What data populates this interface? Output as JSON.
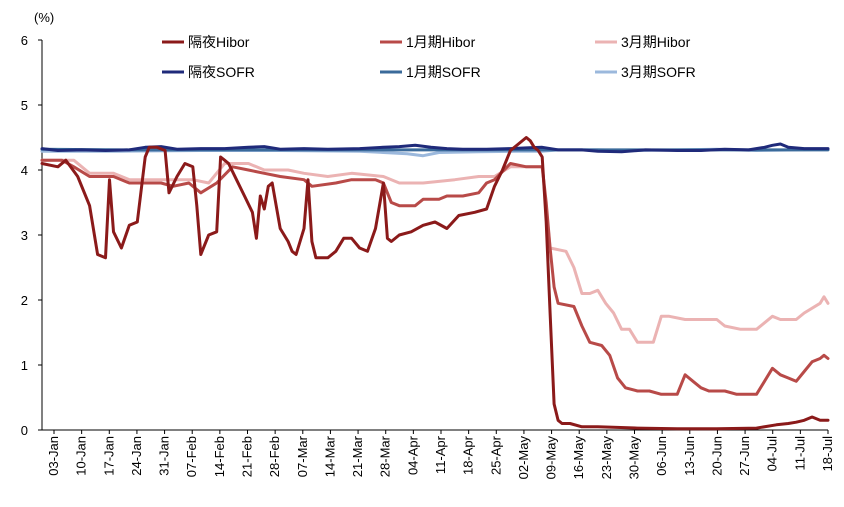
{
  "chart_data": {
    "type": "line",
    "unit_label": "(%)",
    "ylim": [
      0,
      6
    ],
    "yticks": [
      "0",
      "1",
      "2",
      "3",
      "4",
      "5",
      "6"
    ],
    "xlim": [
      0,
      198
    ],
    "xtick_labels": [
      "03-Jan",
      "10-Jan",
      "17-Jan",
      "24-Jan",
      "31-Jan",
      "07-Feb",
      "14-Feb",
      "21-Feb",
      "28-Feb",
      "07-Mar",
      "14-Mar",
      "21-Mar",
      "28-Mar",
      "04-Apr",
      "11-Apr",
      "18-Apr",
      "25-Apr",
      "02-May",
      "09-May",
      "16-May",
      "23-May",
      "30-May",
      "06-Jun",
      "13-Jun",
      "20-Jun",
      "27-Jun",
      "04-Jul",
      "11-Jul",
      "18-Jul"
    ],
    "grid": false,
    "legend_position": "top",
    "colors": {
      "hibor_on": "#8B1A1A",
      "hibor_1m": "#B84A48",
      "hibor_3m": "#EBB3B3",
      "sofr_on": "#1F2A7A",
      "sofr_1m": "#3A6A9A",
      "sofr_3m": "#9BB8DC"
    },
    "series": [
      {
        "name": "隔夜Hibor",
        "key": "hibor_on",
        "points": [
          [
            0,
            4.1
          ],
          [
            4,
            4.05
          ],
          [
            6,
            4.15
          ],
          [
            9,
            3.9
          ],
          [
            12,
            3.45
          ],
          [
            14,
            2.7
          ],
          [
            16,
            2.65
          ],
          [
            17,
            3.85
          ],
          [
            18,
            3.05
          ],
          [
            20,
            2.8
          ],
          [
            22,
            3.15
          ],
          [
            24,
            3.2
          ],
          [
            26,
            4.2
          ],
          [
            27,
            4.35
          ],
          [
            29,
            4.35
          ],
          [
            31,
            4.3
          ],
          [
            32,
            3.65
          ],
          [
            34,
            3.9
          ],
          [
            36,
            4.1
          ],
          [
            38,
            4.05
          ],
          [
            39,
            3.45
          ],
          [
            40,
            2.7
          ],
          [
            42,
            3.0
          ],
          [
            44,
            3.05
          ],
          [
            45,
            4.2
          ],
          [
            46,
            4.15
          ],
          [
            47,
            4.1
          ],
          [
            49,
            3.85
          ],
          [
            51,
            3.6
          ],
          [
            53,
            3.35
          ],
          [
            54,
            2.95
          ],
          [
            55,
            3.6
          ],
          [
            56,
            3.4
          ],
          [
            57,
            3.75
          ],
          [
            58,
            3.8
          ],
          [
            60,
            3.1
          ],
          [
            62,
            2.9
          ],
          [
            63,
            2.75
          ],
          [
            64,
            2.7
          ],
          [
            66,
            3.1
          ],
          [
            67,
            3.85
          ],
          [
            68,
            2.9
          ],
          [
            69,
            2.65
          ],
          [
            72,
            2.65
          ],
          [
            74,
            2.75
          ],
          [
            76,
            2.95
          ],
          [
            78,
            2.95
          ],
          [
            80,
            2.8
          ],
          [
            82,
            2.75
          ],
          [
            84,
            3.1
          ],
          [
            86,
            3.8
          ],
          [
            87,
            2.95
          ],
          [
            88,
            2.9
          ],
          [
            90,
            3.0
          ],
          [
            93,
            3.05
          ],
          [
            96,
            3.15
          ],
          [
            99,
            3.2
          ],
          [
            102,
            3.1
          ],
          [
            105,
            3.3
          ],
          [
            109,
            3.35
          ],
          [
            112,
            3.4
          ],
          [
            114,
            3.75
          ],
          [
            116,
            4.0
          ],
          [
            118,
            4.3
          ],
          [
            120,
            4.4
          ],
          [
            122,
            4.5
          ],
          [
            123,
            4.45
          ],
          [
            124,
            4.35
          ],
          [
            125,
            4.3
          ],
          [
            126,
            4.2
          ],
          [
            127,
            3.2
          ],
          [
            128,
            1.8
          ],
          [
            129,
            0.4
          ],
          [
            130,
            0.15
          ],
          [
            131,
            0.1
          ],
          [
            133,
            0.1
          ],
          [
            136,
            0.05
          ],
          [
            140,
            0.05
          ],
          [
            150,
            0.03
          ],
          [
            160,
            0.02
          ],
          [
            170,
            0.02
          ],
          [
            180,
            0.03
          ],
          [
            185,
            0.08
          ],
          [
            188,
            0.1
          ],
          [
            190,
            0.12
          ],
          [
            192,
            0.15
          ],
          [
            194,
            0.2
          ],
          [
            196,
            0.15
          ],
          [
            198,
            0.15
          ]
        ]
      },
      {
        "name": "1月期Hibor",
        "key": "hibor_1m",
        "points": [
          [
            0,
            4.15
          ],
          [
            5,
            4.15
          ],
          [
            8,
            4.05
          ],
          [
            12,
            3.9
          ],
          [
            18,
            3.9
          ],
          [
            22,
            3.8
          ],
          [
            30,
            3.8
          ],
          [
            33,
            3.75
          ],
          [
            37,
            3.8
          ],
          [
            40,
            3.65
          ],
          [
            44,
            3.8
          ],
          [
            48,
            4.05
          ],
          [
            52,
            4.0
          ],
          [
            56,
            3.95
          ],
          [
            60,
            3.9
          ],
          [
            66,
            3.85
          ],
          [
            68,
            3.75
          ],
          [
            74,
            3.8
          ],
          [
            78,
            3.85
          ],
          [
            84,
            3.85
          ],
          [
            86,
            3.8
          ],
          [
            88,
            3.5
          ],
          [
            90,
            3.45
          ],
          [
            94,
            3.45
          ],
          [
            96,
            3.55
          ],
          [
            100,
            3.55
          ],
          [
            102,
            3.6
          ],
          [
            106,
            3.6
          ],
          [
            110,
            3.65
          ],
          [
            112,
            3.8
          ],
          [
            114,
            3.85
          ],
          [
            118,
            4.1
          ],
          [
            122,
            4.05
          ],
          [
            126,
            4.05
          ],
          [
            127,
            3.5
          ],
          [
            128,
            2.8
          ],
          [
            129,
            2.2
          ],
          [
            130,
            1.95
          ],
          [
            134,
            1.9
          ],
          [
            136,
            1.6
          ],
          [
            138,
            1.35
          ],
          [
            141,
            1.3
          ],
          [
            143,
            1.15
          ],
          [
            145,
            0.8
          ],
          [
            147,
            0.65
          ],
          [
            150,
            0.6
          ],
          [
            153,
            0.6
          ],
          [
            156,
            0.55
          ],
          [
            160,
            0.55
          ],
          [
            162,
            0.85
          ],
          [
            164,
            0.75
          ],
          [
            166,
            0.65
          ],
          [
            168,
            0.6
          ],
          [
            170,
            0.6
          ],
          [
            172,
            0.6
          ],
          [
            175,
            0.55
          ],
          [
            178,
            0.55
          ],
          [
            180,
            0.55
          ],
          [
            182,
            0.75
          ],
          [
            184,
            0.95
          ],
          [
            186,
            0.85
          ],
          [
            188,
            0.8
          ],
          [
            190,
            0.75
          ],
          [
            192,
            0.9
          ],
          [
            194,
            1.05
          ],
          [
            196,
            1.1
          ],
          [
            197,
            1.15
          ],
          [
            198,
            1.1
          ]
        ]
      },
      {
        "name": "3月期Hibor",
        "key": "hibor_3m",
        "points": [
          [
            0,
            4.15
          ],
          [
            8,
            4.15
          ],
          [
            12,
            3.95
          ],
          [
            18,
            3.95
          ],
          [
            22,
            3.85
          ],
          [
            30,
            3.85
          ],
          [
            38,
            3.85
          ],
          [
            42,
            3.8
          ],
          [
            46,
            4.1
          ],
          [
            52,
            4.1
          ],
          [
            56,
            4.0
          ],
          [
            62,
            4.0
          ],
          [
            66,
            3.95
          ],
          [
            72,
            3.9
          ],
          [
            78,
            3.95
          ],
          [
            86,
            3.9
          ],
          [
            90,
            3.8
          ],
          [
            96,
            3.8
          ],
          [
            104,
            3.85
          ],
          [
            110,
            3.9
          ],
          [
            114,
            3.9
          ],
          [
            118,
            4.05
          ],
          [
            122,
            4.05
          ],
          [
            126,
            4.05
          ],
          [
            127,
            3.4
          ],
          [
            128,
            2.8
          ],
          [
            132,
            2.75
          ],
          [
            134,
            2.5
          ],
          [
            136,
            2.1
          ],
          [
            138,
            2.1
          ],
          [
            140,
            2.15
          ],
          [
            142,
            1.95
          ],
          [
            144,
            1.8
          ],
          [
            146,
            1.55
          ],
          [
            148,
            1.55
          ],
          [
            150,
            1.35
          ],
          [
            154,
            1.35
          ],
          [
            156,
            1.75
          ],
          [
            158,
            1.75
          ],
          [
            162,
            1.7
          ],
          [
            166,
            1.7
          ],
          [
            170,
            1.7
          ],
          [
            172,
            1.6
          ],
          [
            176,
            1.55
          ],
          [
            180,
            1.55
          ],
          [
            182,
            1.65
          ],
          [
            184,
            1.75
          ],
          [
            186,
            1.7
          ],
          [
            190,
            1.7
          ],
          [
            192,
            1.8
          ],
          [
            196,
            1.95
          ],
          [
            197,
            2.05
          ],
          [
            198,
            1.95
          ]
        ]
      },
      {
        "name": "隔夜SOFR",
        "key": "sofr_on",
        "points": [
          [
            0,
            4.33
          ],
          [
            4,
            4.3
          ],
          [
            10,
            4.31
          ],
          [
            16,
            4.3
          ],
          [
            22,
            4.31
          ],
          [
            26,
            4.35
          ],
          [
            30,
            4.36
          ],
          [
            34,
            4.32
          ],
          [
            40,
            4.33
          ],
          [
            46,
            4.33
          ],
          [
            52,
            4.35
          ],
          [
            56,
            4.36
          ],
          [
            60,
            4.32
          ],
          [
            66,
            4.33
          ],
          [
            72,
            4.32
          ],
          [
            80,
            4.33
          ],
          [
            86,
            4.35
          ],
          [
            90,
            4.36
          ],
          [
            94,
            4.38
          ],
          [
            98,
            4.35
          ],
          [
            102,
            4.33
          ],
          [
            106,
            4.32
          ],
          [
            112,
            4.32
          ],
          [
            118,
            4.33
          ],
          [
            122,
            4.34
          ],
          [
            126,
            4.35
          ],
          [
            130,
            4.31
          ],
          [
            136,
            4.31
          ],
          [
            140,
            4.29
          ],
          [
            146,
            4.28
          ],
          [
            152,
            4.31
          ],
          [
            160,
            4.3
          ],
          [
            166,
            4.3
          ],
          [
            172,
            4.32
          ],
          [
            178,
            4.31
          ],
          [
            182,
            4.35
          ],
          [
            184,
            4.38
          ],
          [
            186,
            4.4
          ],
          [
            188,
            4.35
          ],
          [
            192,
            4.33
          ],
          [
            196,
            4.33
          ],
          [
            198,
            4.33
          ]
        ]
      },
      {
        "name": "1月期SOFR",
        "key": "sofr_1m",
        "points": [
          [
            0,
            4.32
          ],
          [
            20,
            4.31
          ],
          [
            40,
            4.31
          ],
          [
            60,
            4.31
          ],
          [
            80,
            4.31
          ],
          [
            100,
            4.31
          ],
          [
            120,
            4.31
          ],
          [
            140,
            4.31
          ],
          [
            160,
            4.31
          ],
          [
            180,
            4.31
          ],
          [
            198,
            4.31
          ]
        ]
      },
      {
        "name": "3月期SOFR",
        "key": "sofr_3m",
        "points": [
          [
            0,
            4.29
          ],
          [
            20,
            4.29
          ],
          [
            40,
            4.3
          ],
          [
            60,
            4.3
          ],
          [
            80,
            4.29
          ],
          [
            92,
            4.25
          ],
          [
            96,
            4.22
          ],
          [
            100,
            4.27
          ],
          [
            110,
            4.28
          ],
          [
            120,
            4.29
          ],
          [
            126,
            4.29
          ],
          [
            130,
            4.31
          ],
          [
            140,
            4.31
          ],
          [
            150,
            4.3
          ],
          [
            160,
            4.31
          ],
          [
            170,
            4.32
          ],
          [
            180,
            4.3
          ],
          [
            190,
            4.31
          ],
          [
            198,
            4.32
          ]
        ]
      }
    ]
  }
}
